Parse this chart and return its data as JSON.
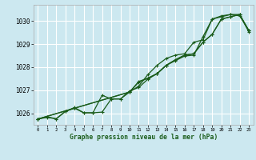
{
  "bg_color": "#cce8f0",
  "grid_color": "#ffffff",
  "line_color": "#1a5c1a",
  "xlabel": "Graphe pression niveau de la mer (hPa)",
  "xlim": [
    -0.5,
    23.5
  ],
  "ylim": [
    1025.5,
    1030.7
  ],
  "yticks": [
    1026,
    1027,
    1028,
    1029,
    1030
  ],
  "xticks": [
    0,
    1,
    2,
    3,
    4,
    5,
    6,
    7,
    8,
    9,
    10,
    11,
    12,
    13,
    14,
    15,
    16,
    17,
    18,
    19,
    20,
    21,
    22,
    23
  ],
  "series1_x": [
    0,
    1,
    2,
    3,
    4,
    5,
    6,
    7,
    8,
    9,
    10,
    11,
    12,
    13,
    14,
    15,
    16,
    17,
    18,
    19,
    20,
    21,
    22,
    23
  ],
  "series1_y": [
    1025.75,
    1025.82,
    1025.76,
    1026.08,
    1026.22,
    1026.02,
    1026.02,
    1026.05,
    1026.62,
    1026.62,
    1026.97,
    1027.12,
    1027.48,
    1027.72,
    1028.08,
    1028.28,
    1028.48,
    1028.52,
    1029.32,
    1030.08,
    1030.18,
    1030.28,
    1030.28,
    1029.52
  ],
  "series2_x": [
    0,
    1,
    2,
    3,
    4,
    5,
    6,
    7,
    8,
    9,
    10,
    11,
    12,
    13,
    14,
    15,
    16,
    17,
    18,
    19,
    20,
    21,
    22,
    23
  ],
  "series2_y": [
    1025.75,
    1025.85,
    1025.76,
    1026.08,
    1026.25,
    1026.02,
    1026.02,
    1026.78,
    1026.62,
    1026.62,
    1026.92,
    1027.18,
    1027.68,
    1028.08,
    1028.38,
    1028.52,
    1028.58,
    1029.08,
    1029.18,
    1030.08,
    1030.22,
    1030.28,
    1030.22,
    1029.58
  ],
  "series3_x": [
    0,
    4,
    10,
    11,
    12,
    13,
    14,
    15,
    16,
    17,
    18,
    19,
    20,
    21,
    22,
    23
  ],
  "series3_y": [
    1025.75,
    1026.22,
    1026.92,
    1027.35,
    1027.52,
    1027.72,
    1028.08,
    1028.32,
    1028.52,
    1028.58,
    1029.08,
    1029.42,
    1030.08,
    1030.18,
    1030.28,
    1029.58
  ],
  "series4_x": [
    0,
    4,
    10,
    11,
    12,
    13,
    14,
    15,
    16,
    17,
    18,
    19,
    20,
    21,
    22,
    23
  ],
  "series4_y": [
    1025.75,
    1026.22,
    1026.92,
    1027.38,
    1027.52,
    1027.72,
    1028.08,
    1028.32,
    1028.52,
    1028.58,
    1029.08,
    1029.42,
    1030.08,
    1030.18,
    1030.28,
    1029.58
  ]
}
